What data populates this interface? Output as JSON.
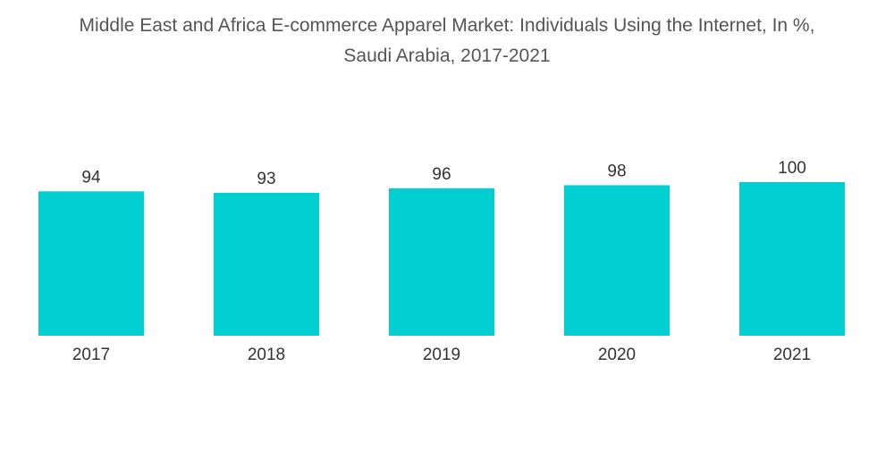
{
  "title_lines": [
    "Middle East and Africa E-commerce Apparel Market: Individuals Using the Internet, In %,",
    "Saudi Arabia, 2017-2021"
  ],
  "bar_color": "#00CED1",
  "chart_data": {
    "type": "bar",
    "title": "Middle East and Africa E-commerce Apparel Market: Individuals Using the Internet, In %, Saudi Arabia, 2017-2021",
    "categories": [
      "2017",
      "2018",
      "2019",
      "2020",
      "2021"
    ],
    "values": [
      94,
      93,
      96,
      98,
      100
    ],
    "xlabel": "",
    "ylabel": "",
    "ylim": [
      0,
      100
    ],
    "grid": false,
    "data_labels": true
  }
}
